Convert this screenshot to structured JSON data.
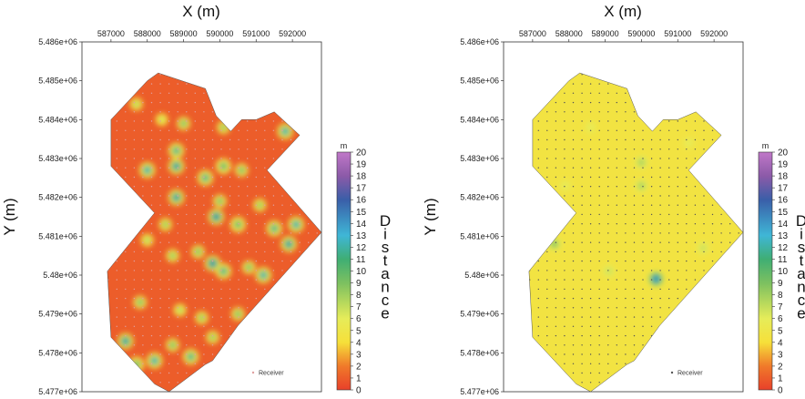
{
  "chart_data": [
    {
      "type": "heatmap",
      "title": "",
      "xlabel": "X (m)",
      "ylabel": "Y (m)",
      "x_ticks": [
        "587000",
        "588000",
        "589000",
        "590000",
        "591000",
        "592000"
      ],
      "y_ticks": [
        "5.477e+06",
        "5.478e+06",
        "5.479e+06",
        "5.48e+06",
        "5.481e+06",
        "5.482e+06",
        "5.483e+06",
        "5.484e+06",
        "5.485e+06",
        "5.486e+06"
      ],
      "xlim": [
        586200,
        592800
      ],
      "ylim": [
        5477000,
        5486000
      ],
      "survey_outline_xy": [
        [
          588000,
          5485000
        ],
        [
          588300,
          5485200
        ],
        [
          589600,
          5484800
        ],
        [
          589900,
          5484100
        ],
        [
          590300,
          5483700
        ],
        [
          590600,
          5484000
        ],
        [
          591000,
          5484000
        ],
        [
          591500,
          5484200
        ],
        [
          592200,
          5483600
        ],
        [
          591300,
          5482700
        ],
        [
          592800,
          5481100
        ],
        [
          590500,
          5478700
        ],
        [
          589800,
          5477800
        ],
        [
          589600,
          5477700
        ],
        [
          588600,
          5477000
        ],
        [
          588200,
          5477200
        ],
        [
          587000,
          5478400
        ],
        [
          586900,
          5480100
        ],
        [
          588200,
          5481600
        ],
        [
          587000,
          5482800
        ],
        [
          587000,
          5484000
        ]
      ],
      "background_value": 1,
      "hotspots": [
        {
          "x": 587700,
          "y": 5484400,
          "value": 8
        },
        {
          "x": 588400,
          "y": 5484000,
          "value": 7
        },
        {
          "x": 589000,
          "y": 5483900,
          "value": 10
        },
        {
          "x": 590100,
          "y": 5483800,
          "value": 9
        },
        {
          "x": 591800,
          "y": 5483700,
          "value": 13
        },
        {
          "x": 588800,
          "y": 5483200,
          "value": 12
        },
        {
          "x": 588800,
          "y": 5482800,
          "value": 14
        },
        {
          "x": 590100,
          "y": 5482800,
          "value": 11
        },
        {
          "x": 590600,
          "y": 5482700,
          "value": 10
        },
        {
          "x": 588000,
          "y": 5482700,
          "value": 13
        },
        {
          "x": 589600,
          "y": 5482500,
          "value": 12
        },
        {
          "x": 588800,
          "y": 5482000,
          "value": 14
        },
        {
          "x": 590000,
          "y": 5481900,
          "value": 10
        },
        {
          "x": 591100,
          "y": 5481800,
          "value": 9
        },
        {
          "x": 589900,
          "y": 5481500,
          "value": 15
        },
        {
          "x": 590500,
          "y": 5481300,
          "value": 11
        },
        {
          "x": 591500,
          "y": 5481200,
          "value": 12
        },
        {
          "x": 588500,
          "y": 5481300,
          "value": 9
        },
        {
          "x": 592100,
          "y": 5481300,
          "value": 13
        },
        {
          "x": 588000,
          "y": 5480900,
          "value": 8
        },
        {
          "x": 589400,
          "y": 5480600,
          "value": 10
        },
        {
          "x": 591900,
          "y": 5480800,
          "value": 14
        },
        {
          "x": 588700,
          "y": 5480500,
          "value": 9
        },
        {
          "x": 589800,
          "y": 5480300,
          "value": 15
        },
        {
          "x": 590100,
          "y": 5480100,
          "value": 12
        },
        {
          "x": 591200,
          "y": 5480000,
          "value": 13
        },
        {
          "x": 590800,
          "y": 5480200,
          "value": 10
        },
        {
          "x": 587800,
          "y": 5479300,
          "value": 10
        },
        {
          "x": 588900,
          "y": 5479100,
          "value": 8
        },
        {
          "x": 589500,
          "y": 5478900,
          "value": 9
        },
        {
          "x": 590500,
          "y": 5479000,
          "value": 10
        },
        {
          "x": 587400,
          "y": 5478300,
          "value": 14
        },
        {
          "x": 588200,
          "y": 5477800,
          "value": 13
        },
        {
          "x": 588700,
          "y": 5478200,
          "value": 10
        },
        {
          "x": 589200,
          "y": 5477900,
          "value": 12
        },
        {
          "x": 587700,
          "y": 5477700,
          "value": 11
        },
        {
          "x": 589800,
          "y": 5478400,
          "value": 9
        }
      ],
      "receivers": {
        "label": "Receiver",
        "marker_color": "#e0a0a0",
        "spacing_m": 240
      },
      "colorbar": {
        "min": 0,
        "max": 20,
        "ticks": [
          "0",
          "1",
          "2",
          "3",
          "4",
          "5",
          "6",
          "7",
          "8",
          "9",
          "10",
          "11",
          "12",
          "13",
          "14",
          "15",
          "16",
          "17",
          "18",
          "19",
          "20"
        ],
        "unit": "m",
        "title": "Distance"
      }
    },
    {
      "type": "heatmap",
      "title": "",
      "xlabel": "X (m)",
      "ylabel": "Y (m)",
      "x_ticks": [
        "587000",
        "588000",
        "589000",
        "590000",
        "591000",
        "592000"
      ],
      "y_ticks": [
        "5.477e+06",
        "5.478e+06",
        "5.479e+06",
        "5.48e+06",
        "5.481e+06",
        "5.482e+06",
        "5.483e+06",
        "5.484e+06",
        "5.485e+06",
        "5.486e+06"
      ],
      "xlim": [
        586200,
        592800
      ],
      "ylim": [
        5477000,
        5486000
      ],
      "survey_outline_xy": [
        [
          588000,
          5485000
        ],
        [
          588300,
          5485200
        ],
        [
          589600,
          5484800
        ],
        [
          589900,
          5484100
        ],
        [
          590300,
          5483700
        ],
        [
          590600,
          5484000
        ],
        [
          591000,
          5484000
        ],
        [
          591500,
          5484200
        ],
        [
          592200,
          5483600
        ],
        [
          591300,
          5482700
        ],
        [
          592800,
          5481100
        ],
        [
          590500,
          5478700
        ],
        [
          589800,
          5477800
        ],
        [
          589600,
          5477700
        ],
        [
          588600,
          5477000
        ],
        [
          588200,
          5477200
        ],
        [
          587000,
          5478400
        ],
        [
          586900,
          5480100
        ],
        [
          588200,
          5481600
        ],
        [
          587000,
          5482800
        ],
        [
          587000,
          5484000
        ]
      ],
      "background_value": 4.5,
      "hotspots": [
        {
          "x": 590000,
          "y": 5482900,
          "value": 8
        },
        {
          "x": 590000,
          "y": 5482300,
          "value": 8
        },
        {
          "x": 587600,
          "y": 5480800,
          "value": 9
        },
        {
          "x": 590400,
          "y": 5479900,
          "value": 15
        },
        {
          "x": 591700,
          "y": 5480700,
          "value": 7
        },
        {
          "x": 588600,
          "y": 5483800,
          "value": 6
        },
        {
          "x": 591300,
          "y": 5483400,
          "value": 6
        },
        {
          "x": 589100,
          "y": 5480100,
          "value": 7
        },
        {
          "x": 587900,
          "y": 5482300,
          "value": 6
        }
      ],
      "receivers": {
        "label": "Receiver",
        "marker_color": "#555555",
        "spacing_m": 240
      },
      "colorbar": {
        "min": 0,
        "max": 20,
        "ticks": [
          "0",
          "1",
          "2",
          "3",
          "4",
          "5",
          "6",
          "7",
          "8",
          "9",
          "10",
          "11",
          "12",
          "13",
          "14",
          "15",
          "16",
          "17",
          "18",
          "19",
          "20"
        ],
        "unit": "m",
        "title": "Distance"
      }
    }
  ]
}
